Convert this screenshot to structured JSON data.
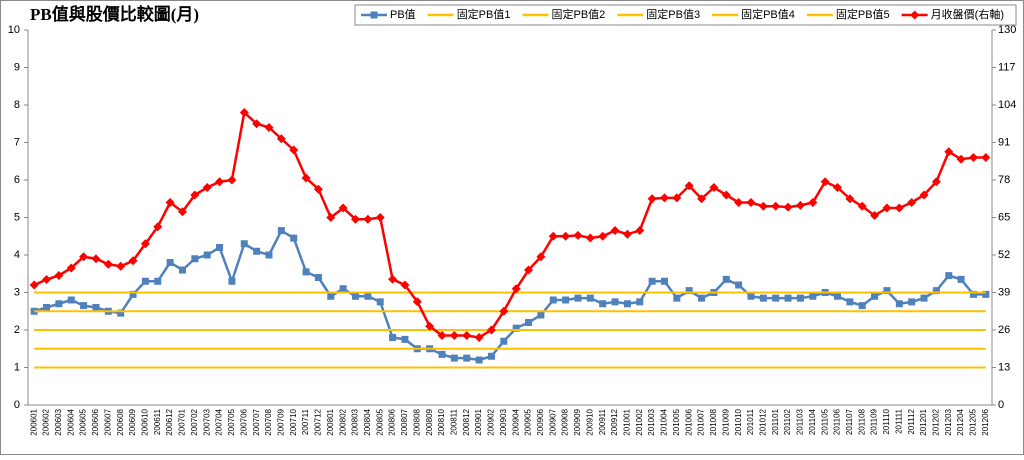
{
  "chart_data": {
    "type": "line",
    "title": "PB值與股價比較圖(月)",
    "legend": "top-right",
    "grid": false,
    "categories": [
      "200601",
      "200602",
      "200603",
      "200604",
      "200605",
      "200606",
      "200607",
      "200608",
      "200609",
      "200610",
      "200611",
      "200612",
      "200701",
      "200702",
      "200703",
      "200704",
      "200705",
      "200706",
      "200707",
      "200708",
      "200709",
      "200710",
      "200711",
      "200712",
      "200801",
      "200802",
      "200803",
      "200804",
      "200805",
      "200806",
      "200807",
      "200808",
      "200809",
      "200810",
      "200811",
      "200812",
      "200901",
      "200902",
      "200903",
      "200904",
      "200905",
      "200906",
      "200907",
      "200908",
      "200909",
      "200910",
      "200911",
      "200912",
      "201001",
      "201002",
      "201003",
      "201004",
      "201005",
      "201006",
      "201007",
      "201008",
      "201009",
      "201010",
      "201011",
      "201012",
      "201101",
      "201102",
      "201103",
      "201104",
      "201105",
      "201106",
      "201107",
      "201108",
      "201109",
      "201110",
      "201111",
      "201112",
      "201201",
      "201202",
      "201203",
      "201204",
      "201205",
      "201206"
    ],
    "ylim": [
      0,
      10
    ],
    "yticks": [
      0,
      1,
      2,
      3,
      4,
      5,
      6,
      7,
      8,
      9,
      10
    ],
    "y2lim": [
      0,
      130
    ],
    "y2ticks": [
      0,
      13,
      26,
      39,
      52,
      65,
      78,
      91,
      104,
      117,
      130
    ],
    "series": [
      {
        "name": "PB值",
        "color": "#4f81bd",
        "marker": "square",
        "values": [
          2.5,
          2.6,
          2.7,
          2.8,
          2.65,
          2.6,
          2.5,
          2.45,
          2.95,
          3.3,
          3.3,
          3.8,
          3.6,
          3.9,
          4.0,
          4.2,
          3.3,
          4.3,
          4.1,
          4.0,
          4.65,
          4.45,
          3.55,
          3.4,
          2.9,
          3.1,
          2.9,
          2.9,
          2.75,
          1.8,
          1.75,
          1.5,
          1.5,
          1.35,
          1.25,
          1.25,
          1.2,
          1.3,
          1.7,
          2.05,
          2.2,
          2.4,
          2.8,
          2.8,
          2.85,
          2.85,
          2.7,
          2.75,
          2.7,
          2.75,
          3.3,
          3.3,
          2.85,
          3.05,
          2.85,
          3.0,
          3.35,
          3.2,
          2.9,
          2.85,
          2.85,
          2.85,
          2.85,
          2.9,
          3.0,
          2.9,
          2.75,
          2.65,
          2.9,
          3.05,
          2.7,
          2.75,
          2.85,
          3.05,
          3.45,
          3.35,
          2.95,
          2.95
        ]
      },
      {
        "name": "固定PB值1",
        "color": "#ffc000",
        "values": [
          1,
          1,
          1,
          1,
          1,
          1,
          1,
          1,
          1,
          1,
          1,
          1,
          1,
          1,
          1,
          1,
          1,
          1,
          1,
          1,
          1,
          1,
          1,
          1,
          1,
          1,
          1,
          1,
          1,
          1,
          1,
          1,
          1,
          1,
          1,
          1,
          1,
          1,
          1,
          1,
          1,
          1,
          1,
          1,
          1,
          1,
          1,
          1,
          1,
          1,
          1,
          1,
          1,
          1,
          1,
          1,
          1,
          1,
          1,
          1,
          1,
          1,
          1,
          1,
          1,
          1,
          1,
          1,
          1,
          1,
          1,
          1,
          1,
          1,
          1,
          1,
          1,
          1
        ]
      },
      {
        "name": "固定PB值2",
        "color": "#ffc000",
        "values": [
          1.5,
          1.5,
          1.5,
          1.5,
          1.5,
          1.5,
          1.5,
          1.5,
          1.5,
          1.5,
          1.5,
          1.5,
          1.5,
          1.5,
          1.5,
          1.5,
          1.5,
          1.5,
          1.5,
          1.5,
          1.5,
          1.5,
          1.5,
          1.5,
          1.5,
          1.5,
          1.5,
          1.5,
          1.5,
          1.5,
          1.5,
          1.5,
          1.5,
          1.5,
          1.5,
          1.5,
          1.5,
          1.5,
          1.5,
          1.5,
          1.5,
          1.5,
          1.5,
          1.5,
          1.5,
          1.5,
          1.5,
          1.5,
          1.5,
          1.5,
          1.5,
          1.5,
          1.5,
          1.5,
          1.5,
          1.5,
          1.5,
          1.5,
          1.5,
          1.5,
          1.5,
          1.5,
          1.5,
          1.5,
          1.5,
          1.5,
          1.5,
          1.5,
          1.5,
          1.5,
          1.5,
          1.5,
          1.5,
          1.5,
          1.5,
          1.5,
          1.5,
          1.5
        ]
      },
      {
        "name": "固定PB值3",
        "color": "#ffc000",
        "values": [
          2,
          2,
          2,
          2,
          2,
          2,
          2,
          2,
          2,
          2,
          2,
          2,
          2,
          2,
          2,
          2,
          2,
          2,
          2,
          2,
          2,
          2,
          2,
          2,
          2,
          2,
          2,
          2,
          2,
          2,
          2,
          2,
          2,
          2,
          2,
          2,
          2,
          2,
          2,
          2,
          2,
          2,
          2,
          2,
          2,
          2,
          2,
          2,
          2,
          2,
          2,
          2,
          2,
          2,
          2,
          2,
          2,
          2,
          2,
          2,
          2,
          2,
          2,
          2,
          2,
          2,
          2,
          2,
          2,
          2,
          2,
          2,
          2,
          2,
          2,
          2,
          2,
          2
        ]
      },
      {
        "name": "固定PB值4",
        "color": "#ffc000",
        "values": [
          2.5,
          2.5,
          2.5,
          2.5,
          2.5,
          2.5,
          2.5,
          2.5,
          2.5,
          2.5,
          2.5,
          2.5,
          2.5,
          2.5,
          2.5,
          2.5,
          2.5,
          2.5,
          2.5,
          2.5,
          2.5,
          2.5,
          2.5,
          2.5,
          2.5,
          2.5,
          2.5,
          2.5,
          2.5,
          2.5,
          2.5,
          2.5,
          2.5,
          2.5,
          2.5,
          2.5,
          2.5,
          2.5,
          2.5,
          2.5,
          2.5,
          2.5,
          2.5,
          2.5,
          2.5,
          2.5,
          2.5,
          2.5,
          2.5,
          2.5,
          2.5,
          2.5,
          2.5,
          2.5,
          2.5,
          2.5,
          2.5,
          2.5,
          2.5,
          2.5,
          2.5,
          2.5,
          2.5,
          2.5,
          2.5,
          2.5,
          2.5,
          2.5,
          2.5,
          2.5,
          2.5,
          2.5,
          2.5,
          2.5,
          2.5,
          2.5,
          2.5,
          2.5
        ]
      },
      {
        "name": "固定PB值5",
        "color": "#ffc000",
        "values": [
          3,
          3,
          3,
          3,
          3,
          3,
          3,
          3,
          3,
          3,
          3,
          3,
          3,
          3,
          3,
          3,
          3,
          3,
          3,
          3,
          3,
          3,
          3,
          3,
          3,
          3,
          3,
          3,
          3,
          3,
          3,
          3,
          3,
          3,
          3,
          3,
          3,
          3,
          3,
          3,
          3,
          3,
          3,
          3,
          3,
          3,
          3,
          3,
          3,
          3,
          3,
          3,
          3,
          3,
          3,
          3,
          3,
          3,
          3,
          3,
          3,
          3,
          3,
          3,
          3,
          3,
          3,
          3,
          3,
          3,
          3,
          3,
          3,
          3,
          3,
          3,
          3,
          3
        ]
      },
      {
        "name": "月收盤價(右軸)",
        "color": "#ff0000",
        "marker": "diamond",
        "axis": "y2",
        "values": [
          41.6,
          43.5,
          44.9,
          47.5,
          51.4,
          50.7,
          48.8,
          48.1,
          50,
          55.9,
          61.8,
          70.2,
          67,
          72.8,
          75.4,
          77.4,
          78,
          101.4,
          97.5,
          96.2,
          92.3,
          88.4,
          78.7,
          74.8,
          65,
          68.3,
          64.4,
          64.4,
          65,
          43.6,
          41.6,
          35.8,
          27.3,
          24.1,
          24.1,
          24.1,
          23.4,
          26,
          32.5,
          40.3,
          46.8,
          51.4,
          58.5,
          58.5,
          58.8,
          57.9,
          58.5,
          60.5,
          59.2,
          60.5,
          71.5,
          71.8,
          71.8,
          76,
          71.5,
          75.4,
          72.8,
          70.2,
          70.2,
          68.9,
          68.9,
          68.6,
          69.2,
          70.2,
          77.4,
          75.4,
          71.5,
          68.9,
          65.7,
          68.3,
          68.3,
          70.2,
          72.8,
          77.4,
          87.8,
          85.2,
          85.8,
          85.8
        ]
      }
    ]
  }
}
